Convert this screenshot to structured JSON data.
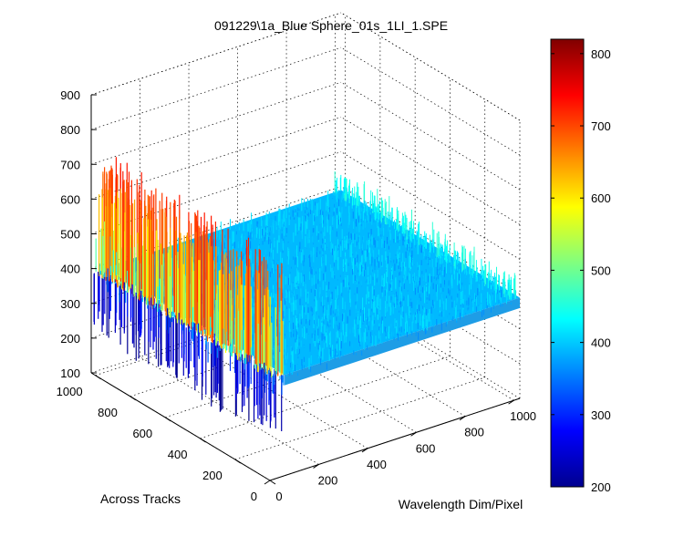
{
  "chart_data": {
    "type": "surface",
    "title": "091229\\1a_Blue Sphere_01s_1LI_1.SPE",
    "xlabel": "Wavelength Dim/Pixel",
    "ylabel": "Across Tracks",
    "zlabel": "",
    "x_range": [
      0,
      1024
    ],
    "y_range": [
      0,
      1024
    ],
    "zlim": [
      100,
      900
    ],
    "x_ticks": [
      "0",
      "200",
      "400",
      "600",
      "800",
      "1000"
    ],
    "y_ticks": [
      "0",
      "200",
      "400",
      "600",
      "800",
      "1000"
    ],
    "z_ticks": [
      "100",
      "200",
      "300",
      "400",
      "500",
      "600",
      "700",
      "800",
      "900"
    ],
    "colorbar": {
      "min": 200,
      "max": 820,
      "ticks": [
        "200",
        "300",
        "400",
        "500",
        "600",
        "700",
        "800"
      ],
      "colormap": "jet"
    },
    "surface": {
      "baseline_value": 390,
      "noise_range": [
        360,
        420
      ],
      "spike_region_x_range": [
        0,
        60
      ],
      "spike_values_range": [
        200,
        730
      ]
    },
    "grid": true,
    "box": false
  }
}
